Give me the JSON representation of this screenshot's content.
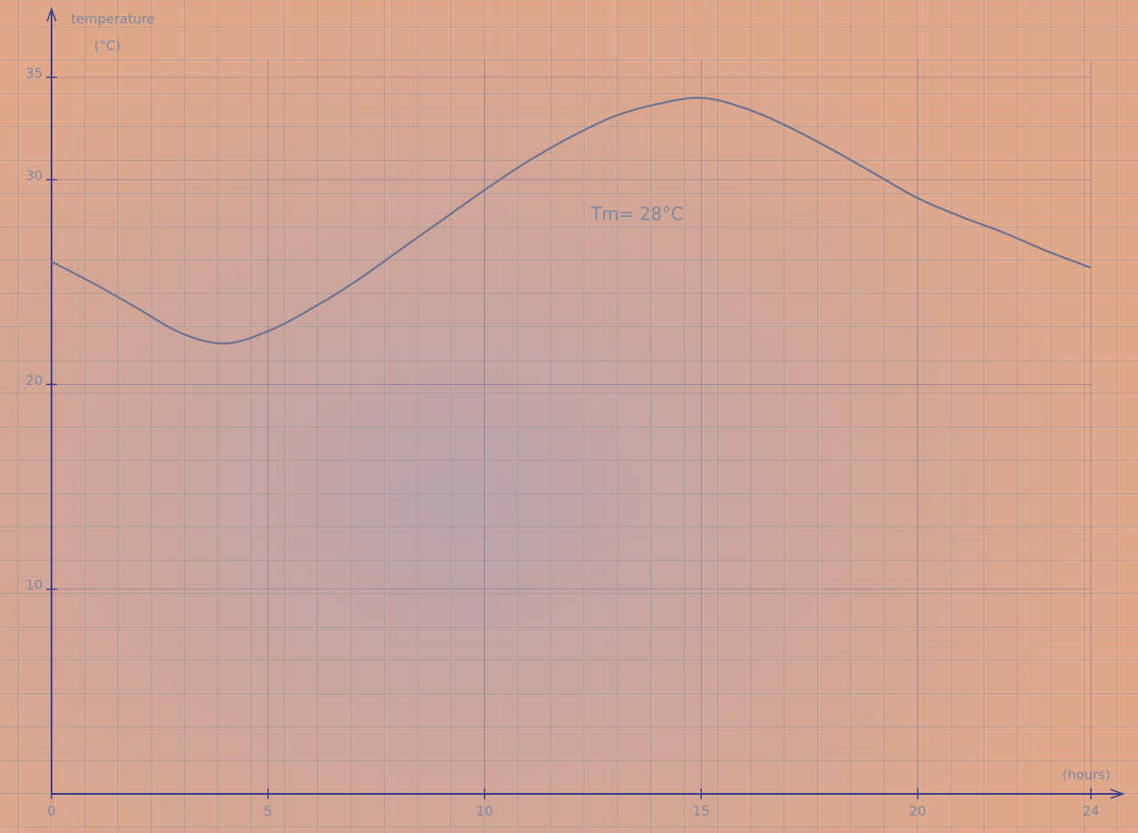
{
  "chart_data": {
    "type": "line",
    "y_label": "temperature",
    "y_unit": "(°C)",
    "x_label": "(hours)",
    "annotation": "Tm= 28°C",
    "x": [
      0,
      1,
      2,
      3,
      4,
      5,
      6,
      7,
      8,
      9,
      10,
      11,
      12,
      13,
      14,
      15,
      16,
      17,
      18,
      19,
      20,
      21,
      22,
      23,
      24
    ],
    "series": [
      {
        "color": "#6c7393",
        "values": [
          26,
          24.9,
          23.7,
          22.5,
          22.0,
          22.6,
          23.7,
          25,
          26.5,
          28,
          29.5,
          30.9,
          32.1,
          33.1,
          33.7,
          34,
          33.5,
          32.6,
          31.5,
          30.3,
          29.1,
          28.2,
          27.4,
          26.5,
          25.7
        ]
      }
    ],
    "xlim": [
      0,
      24
    ],
    "ylim": [
      0,
      35
    ],
    "xticks": [
      0,
      5,
      10,
      15,
      20,
      24
    ],
    "yticks": [
      10,
      20,
      30,
      35
    ],
    "axis_color": "#3b3f8c"
  }
}
